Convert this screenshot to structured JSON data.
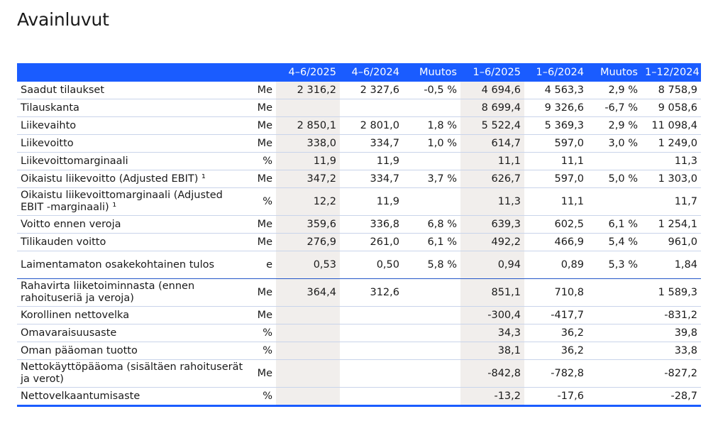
{
  "page": {
    "title": "Avainluvut"
  },
  "table": {
    "headers": [
      "",
      "",
      "4–6/2025",
      "4–6/2024",
      "Muutos",
      "1–6/2025",
      "1–6/2024",
      "Muutos",
      "1–12/2024"
    ],
    "rows": [
      {
        "label": "Saadut tilaukset",
        "unit": "Me",
        "values": [
          "2 316,2",
          "2 327,6",
          "-0,5 %",
          "4 694,6",
          "4 563,3",
          "2,9 %",
          "8 758,9"
        ]
      },
      {
        "label": "Tilauskanta",
        "unit": "Me",
        "values": [
          "",
          "",
          "",
          "8 699,4",
          "9 326,6",
          "-6,7 %",
          "9 058,6"
        ]
      },
      {
        "label": "Liikevaihto",
        "unit": "Me",
        "values": [
          "2 850,1",
          "2 801,0",
          "1,8 %",
          "5 522,4",
          "5 369,3",
          "2,9 %",
          "11 098,4"
        ]
      },
      {
        "label": "Liikevoitto",
        "unit": "Me",
        "values": [
          "338,0",
          "334,7",
          "1,0 %",
          "614,7",
          "597,0",
          "3,0 %",
          "1 249,0"
        ]
      },
      {
        "label": "Liikevoittomarginaali",
        "unit": "%",
        "values": [
          "11,9",
          "11,9",
          "",
          "11,1",
          "11,1",
          "",
          "11,3"
        ]
      },
      {
        "label": "Oikaistu liikevoitto (Adjusted EBIT) ¹",
        "unit": "Me",
        "values": [
          "347,2",
          "334,7",
          "3,7 %",
          "626,7",
          "597,0",
          "5,0 %",
          "1 303,0"
        ]
      },
      {
        "label": "Oikaistu liikevoittomarginaali (Adjusted EBIT -marginaali) ¹",
        "unit": "%",
        "values": [
          "12,2",
          "11,9",
          "",
          "11,3",
          "11,1",
          "",
          "11,7"
        ]
      },
      {
        "label": "Voitto ennen veroja",
        "unit": "Me",
        "values": [
          "359,6",
          "336,8",
          "6,8 %",
          "639,3",
          "602,5",
          "6,1 %",
          "1 254,1"
        ]
      },
      {
        "label": "Tilikauden voitto",
        "unit": "Me",
        "values": [
          "276,9",
          "261,0",
          "6,1 %",
          "492,2",
          "466,9",
          "5,4 %",
          "961,0"
        ]
      },
      {
        "label": "Laimentamaton osakekohtainen tulos",
        "unit": "e",
        "values": [
          "0,53",
          "0,50",
          "5,8 %",
          "0,94",
          "0,89",
          "5,3 %",
          "1,84"
        ]
      },
      {
        "label": "Rahavirta liiketoiminnasta (ennen rahoituseriä ja veroja)",
        "unit": "Me",
        "values": [
          "364,4",
          "312,6",
          "",
          "851,1",
          "710,8",
          "",
          "1 589,3"
        ]
      },
      {
        "label": "Korollinen nettovelka",
        "unit": "Me",
        "values": [
          "",
          "",
          "",
          "-300,4",
          "-417,7",
          "",
          "-831,2"
        ]
      },
      {
        "label": "Omavaraisuusaste",
        "unit": "%",
        "values": [
          "",
          "",
          "",
          "34,3",
          "36,2",
          "",
          "39,8"
        ]
      },
      {
        "label": "Oman pääoman tuotto",
        "unit": "%",
        "values": [
          "",
          "",
          "",
          "38,1",
          "36,2",
          "",
          "33,8"
        ]
      },
      {
        "label": "Nettokäyttöpääoma (sisältäen rahoituserät ja verot)",
        "unit": "Me",
        "values": [
          "",
          "",
          "",
          "-842,8",
          "-782,8",
          "",
          "-827,2"
        ]
      },
      {
        "label": "Nettovelkaantumisaste",
        "unit": "%",
        "values": [
          "",
          "",
          "",
          "-13,2",
          "-17,6",
          "",
          "-28,7"
        ]
      }
    ]
  }
}
